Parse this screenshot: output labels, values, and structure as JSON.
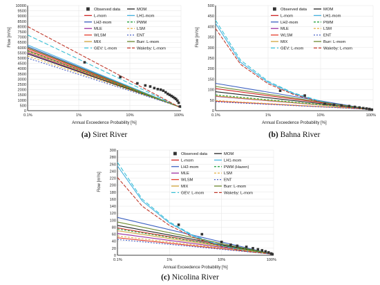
{
  "chart_data": [
    {
      "type": "line",
      "panel": "a",
      "caption_tag": "(a)",
      "caption_title": "Siret River",
      "xlabel": "Annual Exceedence Probability [%]",
      "ylabel": "Flow [m³/s]",
      "x_scale": "log",
      "xlim": [
        0.1,
        100
      ],
      "ylim": [
        0,
        10000
      ],
      "xticks": [
        "0.1%",
        "1%",
        "10%",
        "100%"
      ],
      "yticks": [
        0,
        500,
        1000,
        1500,
        2000,
        2500,
        3000,
        3500,
        4000,
        4500,
        5000,
        5500,
        6000,
        6500,
        7000,
        7500,
        8000,
        8500,
        9000,
        9500,
        10000
      ],
      "ytick_labels": [
        "0",
        "500",
        "1000",
        "1500",
        "2000",
        "2500",
        "3000",
        "3500",
        "4000",
        "4500",
        "5000",
        "5500",
        "6000",
        "6500",
        "7000",
        "7500",
        "8000",
        "8500",
        "9000",
        "9500",
        "10000"
      ],
      "observed": {
        "name": "Observed data",
        "color": "#333333",
        "x": [
          1.3,
          6.5,
          14,
          20,
          25,
          30,
          35,
          40,
          45,
          50,
          55,
          60,
          65,
          70,
          75,
          80,
          85,
          90,
          95
        ],
        "y": [
          4600,
          3200,
          2600,
          2400,
          2300,
          2150,
          2050,
          2000,
          1900,
          1750,
          1600,
          1500,
          1400,
          1300,
          1200,
          1100,
          950,
          750,
          400
        ]
      },
      "series": [
        {
          "name": "L-mom",
          "color": "#d02424",
          "dash": "",
          "x": [
            0.1,
            100
          ],
          "y": [
            5750,
            300
          ]
        },
        {
          "name": "LH2-mom",
          "color": "#3a5fc0",
          "dash": "",
          "x": [
            0.1,
            100
          ],
          "y": [
            6100,
            300
          ]
        },
        {
          "name": "MLE",
          "color": "#9a2fa0",
          "dash": "",
          "x": [
            0.1,
            100
          ],
          "y": [
            5500,
            320
          ]
        },
        {
          "name": "WLSM",
          "color": "#e33b2a",
          "dash": "",
          "x": [
            0.1,
            100
          ],
          "y": [
            5900,
            310
          ]
        },
        {
          "name": "MIX",
          "color": "#d1a43a",
          "dash": "",
          "x": [
            0.1,
            100
          ],
          "y": [
            5600,
            300
          ]
        },
        {
          "name": "GEV: L-mom",
          "color": "#36c0d6",
          "dash": "6 3",
          "x": [
            0.1,
            100
          ],
          "y": [
            7200,
            280
          ]
        },
        {
          "name": "MOM",
          "color": "#222222",
          "dash": "",
          "x": [
            0.1,
            100
          ],
          "y": [
            5400,
            320
          ]
        },
        {
          "name": "LH1-mom",
          "color": "#45b2e0",
          "dash": "",
          "x": [
            0.1,
            100
          ],
          "y": [
            6250,
            300
          ]
        },
        {
          "name": "PWM",
          "color": "#27a342",
          "dash": "3 2",
          "x": [
            0.1,
            100
          ],
          "y": [
            5700,
            300
          ]
        },
        {
          "name": "LSM",
          "color": "#e4b54f",
          "dash": "3 2",
          "x": [
            0.1,
            100
          ],
          "y": [
            5200,
            330
          ]
        },
        {
          "name": "ENT",
          "color": "#4a62c8",
          "dash": "2 2",
          "x": [
            0.1,
            100
          ],
          "y": [
            5000,
            330
          ]
        },
        {
          "name": "Burr: L-mom",
          "color": "#6d8a2f",
          "dash": "",
          "x": [
            0.1,
            100
          ],
          "y": [
            6000,
            300
          ]
        },
        {
          "name": "Wakeby: L-mom",
          "color": "#c0392b",
          "dash": "5 2",
          "x": [
            0.1,
            100
          ],
          "y": [
            8000,
            260
          ]
        }
      ]
    },
    {
      "type": "line",
      "panel": "b",
      "caption_tag": "(b)",
      "caption_title": "Bahna River",
      "xlabel": "Annual Exceedence Probability [%]",
      "ylabel": "Flow [m³/s]",
      "x_scale": "log",
      "xlim": [
        0.1,
        100
      ],
      "ylim": [
        0,
        500
      ],
      "xticks": [
        "0.1%",
        "1%",
        "10%",
        "100%"
      ],
      "yticks": [
        0,
        50,
        100,
        150,
        200,
        250,
        300,
        350,
        400,
        450,
        500
      ],
      "ytick_labels": [
        "0",
        "50",
        "100",
        "150",
        "200",
        "250",
        "300",
        "350",
        "400",
        "450",
        "500"
      ],
      "observed": {
        "name": "Observed data",
        "color": "#333333",
        "x": [
          1.7,
          5,
          12,
          18,
          25,
          35,
          45,
          55,
          65,
          75,
          85,
          95
        ],
        "y": [
          95,
          72,
          33,
          28,
          25,
          22,
          18,
          15,
          12,
          10,
          8,
          5
        ]
      },
      "series": [
        {
          "name": "L-mom",
          "color": "#d02424",
          "dash": "",
          "x": [
            0.1,
            100
          ],
          "y": [
            105,
            5
          ]
        },
        {
          "name": "LH2-mom",
          "color": "#3a5fc0",
          "dash": "",
          "x": [
            0.1,
            100
          ],
          "y": [
            130,
            5
          ]
        },
        {
          "name": "MLE",
          "color": "#9a2fa0",
          "dash": "",
          "x": [
            0.1,
            100
          ],
          "y": [
            68,
            6
          ]
        },
        {
          "name": "WLSM",
          "color": "#e33b2a",
          "dash": "",
          "x": [
            0.1,
            100
          ],
          "y": [
            45,
            6
          ]
        },
        {
          "name": "MIX",
          "color": "#d1a43a",
          "dash": "",
          "x": [
            0.1,
            100
          ],
          "y": [
            70,
            6
          ]
        },
        {
          "name": "GEV: L-mom",
          "color": "#36c0d6",
          "dash": "6 3",
          "x": [
            0.1,
            0.3,
            1,
            3,
            10,
            30,
            100
          ],
          "y": [
            430,
            240,
            140,
            85,
            45,
            20,
            5
          ]
        },
        {
          "name": "MOM",
          "color": "#222222",
          "dash": "",
          "x": [
            0.1,
            100
          ],
          "y": [
            90,
            5
          ]
        },
        {
          "name": "LH1-mom",
          "color": "#45b2e0",
          "dash": "",
          "x": [
            0.1,
            0.3,
            1,
            3,
            10,
            30,
            100
          ],
          "y": [
            415,
            230,
            135,
            82,
            42,
            18,
            5
          ]
        },
        {
          "name": "PWM",
          "color": "#27a342",
          "dash": "3 2",
          "x": [
            0.1,
            100
          ],
          "y": [
            75,
            6
          ]
        },
        {
          "name": "LSM",
          "color": "#e4b54f",
          "dash": "3 2",
          "x": [
            0.1,
            100
          ],
          "y": [
            48,
            6
          ]
        },
        {
          "name": "ENT",
          "color": "#4a62c8",
          "dash": "2 2",
          "x": [
            0.1,
            100
          ],
          "y": [
            42,
            6
          ]
        },
        {
          "name": "Burr: L-mom",
          "color": "#6d8a2f",
          "dash": "",
          "x": [
            0.1,
            100
          ],
          "y": [
            115,
            5
          ]
        },
        {
          "name": "Wakeby: L-mom",
          "color": "#c0392b",
          "dash": "5 2",
          "x": [
            0.1,
            0.3,
            1,
            3,
            10,
            30,
            100
          ],
          "y": [
            390,
            220,
            128,
            78,
            40,
            17,
            5
          ]
        }
      ]
    },
    {
      "type": "line",
      "panel": "c",
      "caption_tag": "(c)",
      "caption_title": "Nicolina River",
      "xlabel": "Annual Exceedence Probability [%]",
      "ylabel": "Flow [m³/s]",
      "x_scale": "log",
      "xlim": [
        0.1,
        100
      ],
      "ylim": [
        0,
        300
      ],
      "xticks": [
        "0.1%",
        "1%",
        "10%",
        "100%"
      ],
      "yticks": [
        0,
        20,
        40,
        60,
        80,
        100,
        120,
        140,
        160,
        180,
        200,
        220,
        240,
        260,
        280,
        300
      ],
      "ytick_labels": [
        "0",
        "20",
        "40",
        "60",
        "80",
        "100",
        "120",
        "140",
        "160",
        "180",
        "200",
        "220",
        "240",
        "260",
        "280",
        "300"
      ],
      "observed": {
        "name": "Observed data",
        "color": "#333333",
        "x": [
          1.5,
          4.2,
          10,
          15,
          20,
          30,
          40,
          50,
          60,
          70,
          80,
          90,
          95
        ],
        "y": [
          87,
          60,
          38,
          30,
          27,
          24,
          20,
          17,
          14,
          11,
          8,
          5,
          3
        ]
      },
      "series": [
        {
          "name": "L-mom",
          "color": "#d02424",
          "dash": "",
          "x": [
            0.1,
            100
          ],
          "y": [
            78,
            3
          ]
        },
        {
          "name": "LH2-mom",
          "color": "#3a5fc0",
          "dash": "",
          "x": [
            0.1,
            100
          ],
          "y": [
            108,
            3
          ]
        },
        {
          "name": "MLE",
          "color": "#9a2fa0",
          "dash": "",
          "x": [
            0.1,
            100
          ],
          "y": [
            62,
            3
          ]
        },
        {
          "name": "WLSM",
          "color": "#e33b2a",
          "dash": "",
          "x": [
            0.1,
            100
          ],
          "y": [
            50,
            3
          ]
        },
        {
          "name": "MIX",
          "color": "#d1a43a",
          "dash": "",
          "x": [
            0.1,
            100
          ],
          "y": [
            70,
            3
          ]
        },
        {
          "name": "GEV: L-mom",
          "color": "#36c0d6",
          "dash": "6 3",
          "x": [
            0.1,
            0.3,
            1,
            3,
            10,
            30,
            100
          ],
          "y": [
            265,
            160,
            95,
            55,
            28,
            12,
            3
          ]
        },
        {
          "name": "MOM",
          "color": "#222222",
          "dash": "",
          "x": [
            0.1,
            100
          ],
          "y": [
            85,
            3
          ]
        },
        {
          "name": "LH1-mom",
          "color": "#45b2e0",
          "dash": "",
          "x": [
            0.1,
            0.3,
            1,
            3,
            10,
            30,
            100
          ],
          "y": [
            255,
            155,
            92,
            53,
            27,
            11,
            3
          ]
        },
        {
          "name": "PWM (Hazen)",
          "color": "#27a342",
          "dash": "3 2",
          "x": [
            0.1,
            100
          ],
          "y": [
            75,
            4
          ]
        },
        {
          "name": "LSM",
          "color": "#e4b54f",
          "dash": "3 2",
          "x": [
            0.1,
            100
          ],
          "y": [
            55,
            3
          ]
        },
        {
          "name": "ENT",
          "color": "#4a62c8",
          "dash": "2 2",
          "x": [
            0.1,
            100
          ],
          "y": [
            45,
            3
          ]
        },
        {
          "name": "Burr: L-mom",
          "color": "#6d8a2f",
          "dash": "",
          "x": [
            0.1,
            100
          ],
          "y": [
            95,
            3
          ]
        },
        {
          "name": "Wakeby: L-mom",
          "color": "#c0392b",
          "dash": "5 2",
          "x": [
            0.1,
            0.3,
            1,
            3,
            10,
            30,
            100
          ],
          "y": [
            222,
            140,
            85,
            50,
            25,
            11,
            3
          ]
        }
      ]
    }
  ]
}
